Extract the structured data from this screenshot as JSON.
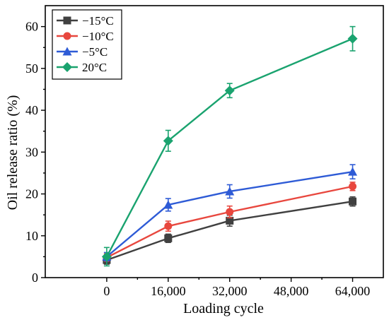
{
  "chart_data": {
    "type": "line",
    "xlabel": "Loading cycle",
    "ylabel": "Oil release ratio (%)",
    "x": [
      0,
      16000,
      32000,
      64000
    ],
    "xlim": [
      -16000,
      72000
    ],
    "xticks": [
      0,
      16000,
      32000,
      48000,
      64000
    ],
    "xtick_labels": [
      "0",
      "16,000",
      "32,000",
      "48,000",
      "64,000"
    ],
    "ylim": [
      0,
      65
    ],
    "yticks": [
      0,
      10,
      20,
      30,
      40,
      50,
      60
    ],
    "ytick_labels": [
      "0",
      "10",
      "20",
      "30",
      "40",
      "50",
      "60"
    ],
    "grid": false,
    "legend_position": "top-left",
    "series": [
      {
        "name": "−15°C",
        "color": "#404040",
        "marker": "square",
        "values": [
          4.2,
          9.4,
          13.6,
          18.2
        ],
        "errors": [
          1.0,
          1.0,
          1.3,
          1.1
        ]
      },
      {
        "name": "−10°C",
        "color": "#e8473e",
        "marker": "circle",
        "values": [
          4.8,
          12.3,
          15.7,
          21.8
        ],
        "errors": [
          0.9,
          1.2,
          1.4,
          1.0
        ]
      },
      {
        "name": "−5°C",
        "color": "#2e5bd6",
        "marker": "triangle",
        "values": [
          5.0,
          17.4,
          20.6,
          25.3
        ],
        "errors": [
          1.0,
          1.5,
          1.6,
          1.7
        ]
      },
      {
        "name": "20°C",
        "color": "#1aa36f",
        "marker": "diamond",
        "values": [
          5.0,
          32.7,
          44.7,
          57.1
        ],
        "errors": [
          2.2,
          2.5,
          1.7,
          2.9
        ]
      }
    ]
  }
}
